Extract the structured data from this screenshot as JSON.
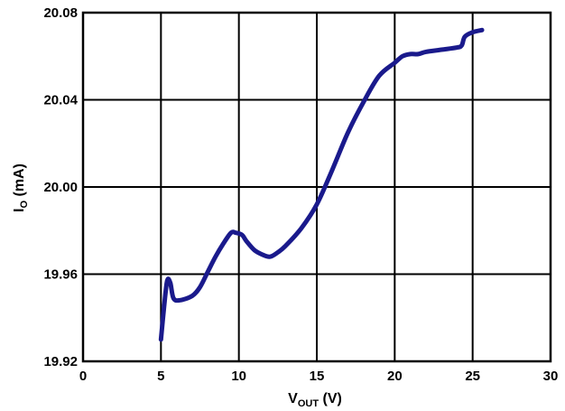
{
  "chart_data": {
    "type": "line",
    "title": "",
    "xlabel": {
      "main": "V",
      "sub": "OUT",
      "unit": " (V)"
    },
    "ylabel": {
      "main": "I",
      "sub": "O",
      "unit": " (mA)"
    },
    "xlim": [
      0,
      30
    ],
    "ylim": [
      19.92,
      20.08
    ],
    "x_ticks": [
      "0",
      "5",
      "10",
      "15",
      "20",
      "25",
      "30"
    ],
    "y_ticks": [
      "19.92",
      "19.96",
      "20.00",
      "20.04",
      "20.08"
    ],
    "grid": true,
    "line_color": "#1a1a8c",
    "series": [
      {
        "x": [
          5.0,
          5.2,
          5.4,
          5.6,
          5.8,
          6.2,
          7.0,
          7.5,
          8.0,
          8.5,
          9.0,
          9.5,
          9.8,
          10.2,
          10.5,
          11.0,
          11.5,
          12.0,
          12.5,
          13.0,
          14.0,
          15.0,
          16.0,
          17.0,
          18.0,
          19.0,
          20.0,
          20.5,
          21.0,
          21.5,
          22.0,
          23.0,
          24.0,
          24.3,
          24.5,
          25.0,
          25.6
        ],
        "values": [
          19.93,
          19.945,
          19.957,
          19.956,
          19.949,
          19.948,
          19.95,
          19.954,
          19.961,
          19.968,
          19.974,
          19.979,
          19.979,
          19.978,
          19.975,
          19.971,
          19.969,
          19.968,
          19.97,
          19.973,
          19.981,
          19.992,
          20.008,
          20.025,
          20.039,
          20.051,
          20.057,
          20.06,
          20.061,
          20.061,
          20.062,
          20.063,
          20.064,
          20.065,
          20.069,
          20.071,
          20.072
        ]
      }
    ]
  }
}
